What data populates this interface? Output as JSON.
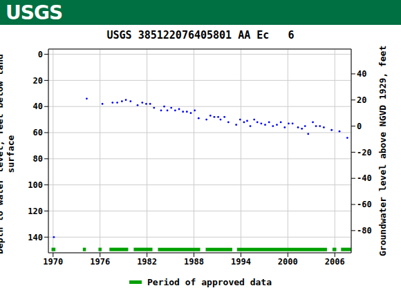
{
  "header": "USGS",
  "chart_data": {
    "type": "scatter",
    "title": "USGS 385122076405801 AA Ec   6",
    "y_label": "Depth to water level, feet below land surface",
    "y2_label": "Groundwater level above NGVD 1929, feet",
    "legend_label": "Period of approved data",
    "color": "#0000ff",
    "marker": "dot",
    "grid": true,
    "approved_color": "#00a000",
    "x": [
      1970.1,
      1974.3,
      1976.3,
      1977.6,
      1978.2,
      1978.8,
      1979.3,
      1979.9,
      1980.8,
      1981.4,
      1981.9,
      1982.4,
      1982.9,
      1983.8,
      1984.2,
      1984.6,
      1985.1,
      1985.6,
      1986.1,
      1986.6,
      1987.1,
      1987.6,
      1988.1,
      1988.6,
      1989.6,
      1990.1,
      1990.6,
      1991.1,
      1991.4,
      1991.9,
      1992.4,
      1993.4,
      1993.9,
      1994.4,
      1994.8,
      1995.2,
      1995.7,
      1996.1,
      1996.6,
      1997.1,
      1997.6,
      1998.1,
      1998.6,
      1999.1,
      1999.6,
      2000.1,
      2000.6,
      2001.3,
      2001.8,
      2002.2,
      2002.6,
      2003.2,
      2003.6,
      2004.1,
      2004.6,
      2005.6,
      2006.6,
      2007.6
    ],
    "values": [
      140,
      34,
      38,
      37,
      37,
      36,
      35,
      36,
      39,
      37,
      38,
      38,
      41,
      43,
      40,
      43,
      41,
      43,
      42,
      44,
      44,
      45,
      43,
      49,
      50,
      47,
      48,
      48,
      50,
      48,
      52,
      54,
      50,
      52,
      51,
      55,
      50,
      52,
      53,
      54,
      52,
      55,
      54,
      52,
      56,
      53,
      53,
      56,
      57,
      55,
      61,
      52,
      55,
      55,
      56,
      58,
      59,
      64
    ],
    "approved_periods": [
      [
        1969.8,
        1970.3
      ],
      [
        1973.8,
        1974.2
      ],
      [
        1975.8,
        1976.2
      ],
      [
        1977.2,
        1979.6
      ],
      [
        1980.3,
        1982.7
      ],
      [
        1983.4,
        1988.8
      ],
      [
        1989.5,
        1992.9
      ],
      [
        1993.5,
        2005.0
      ],
      [
        2005.7,
        2006.2
      ],
      [
        2006.8,
        2008.1
      ]
    ],
    "xlim": [
      1969.4,
      2008.1
    ],
    "xticks": [
      1970,
      1976,
      1982,
      1988,
      1994,
      2000,
      2006
    ],
    "ylim": [
      -4,
      152
    ],
    "yticks": [
      0,
      20,
      40,
      60,
      80,
      100,
      120,
      140
    ],
    "y2lim": [
      -97,
      59
    ],
    "y2ticks": [
      40,
      20,
      0,
      -20,
      -40,
      -60,
      -80
    ]
  }
}
